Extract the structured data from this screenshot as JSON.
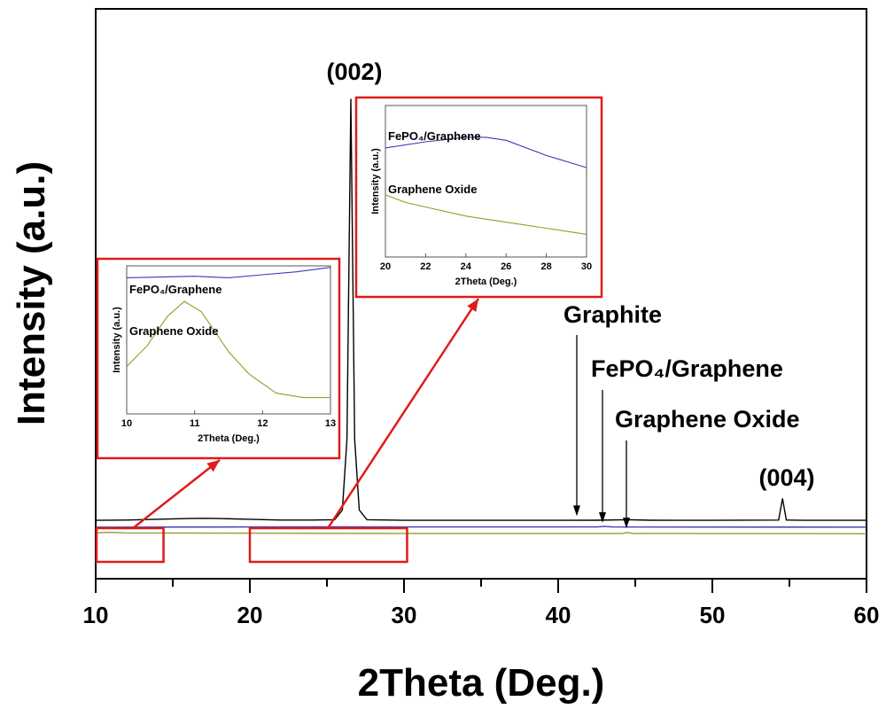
{
  "chart_data": {
    "type": "line",
    "xlabel": "2Theta (Deg.)",
    "ylabel": "Intensity (a.u.)",
    "xlim": [
      10,
      60
    ],
    "x_ticks": [
      "10",
      "20",
      "30",
      "40",
      "50",
      "60"
    ],
    "colors": {
      "graphite": "#000000",
      "fepo4": "#3a3ab8",
      "go": "#9a9a2a",
      "highlight": "#e01b1b"
    },
    "series": [
      {
        "key": "graphite",
        "points": [
          [
            10,
            0.2
          ],
          [
            12,
            0.22
          ],
          [
            14,
            0.28
          ],
          [
            16,
            0.34
          ],
          [
            17,
            0.36
          ],
          [
            18,
            0.34
          ],
          [
            20,
            0.28
          ],
          [
            22,
            0.22
          ],
          [
            24,
            0.22
          ],
          [
            25.5,
            0.25
          ],
          [
            26.0,
            1.0
          ],
          [
            26.3,
            6.5
          ],
          [
            26.55,
            33
          ],
          [
            26.8,
            6.5
          ],
          [
            27.1,
            1.0
          ],
          [
            27.6,
            0.25
          ],
          [
            30,
            0.2
          ],
          [
            35,
            0.2
          ],
          [
            40,
            0.2
          ],
          [
            42.5,
            0.21
          ],
          [
            44.5,
            0.25
          ],
          [
            46,
            0.21
          ],
          [
            50,
            0.2
          ],
          [
            54.3,
            0.22
          ],
          [
            54.55,
            1.9
          ],
          [
            54.8,
            0.22
          ],
          [
            56,
            0.2
          ],
          [
            60,
            0.2
          ]
        ]
      },
      {
        "key": "fepo4",
        "points": [
          [
            10,
            -0.33
          ],
          [
            20,
            -0.32
          ],
          [
            26,
            -0.31
          ],
          [
            30,
            -0.32
          ],
          [
            42.5,
            -0.32
          ],
          [
            43.0,
            -0.27
          ],
          [
            43.5,
            -0.32
          ],
          [
            60,
            -0.33
          ]
        ]
      },
      {
        "key": "go",
        "points": [
          [
            10,
            -0.78
          ],
          [
            10.8,
            -0.74
          ],
          [
            12,
            -0.78
          ],
          [
            20,
            -0.8
          ],
          [
            30,
            -0.82
          ],
          [
            44.2,
            -0.82
          ],
          [
            44.5,
            -0.74
          ],
          [
            44.8,
            -0.82
          ],
          [
            60,
            -0.84
          ]
        ]
      }
    ],
    "annotations": [
      {
        "text": "Graphite",
        "target": [
          41.2,
          0.25
        ]
      },
      {
        "text": "FePO₄/Graphene",
        "target": [
          42.9,
          -0.28
        ]
      },
      {
        "text": "Graphene Oxide",
        "target": [
          44.4,
          -0.7
        ]
      }
    ],
    "peak_labels": [
      "(002)",
      "(004)"
    ],
    "insets": [
      {
        "xlim": [
          10,
          13
        ],
        "x_ticks": [
          "10",
          "11",
          "12",
          "13"
        ],
        "xlabel": "2Theta (Deg.)",
        "ylabel": "Intensity (a.u.)",
        "labels": [
          "FePO₄/Graphene",
          "Graphene Oxide"
        ],
        "highlight_range": [
          10,
          14.4
        ],
        "series": [
          {
            "key": "fepo4",
            "points": [
              [
                10,
                0.92
              ],
              [
                11,
                0.93
              ],
              [
                11.5,
                0.92
              ],
              [
                12,
                0.94
              ],
              [
                12.5,
                0.96
              ],
              [
                13,
                0.99
              ]
            ]
          },
          {
            "key": "go",
            "points": [
              [
                10,
                0.32
              ],
              [
                10.3,
                0.46
              ],
              [
                10.6,
                0.66
              ],
              [
                10.85,
                0.76
              ],
              [
                11.1,
                0.69
              ],
              [
                11.5,
                0.42
              ],
              [
                11.8,
                0.27
              ],
              [
                12.2,
                0.14
              ],
              [
                12.6,
                0.11
              ],
              [
                13,
                0.11
              ]
            ]
          }
        ]
      },
      {
        "xlim": [
          20,
          30
        ],
        "x_ticks": [
          "20",
          "22",
          "24",
          "26",
          "28",
          "30"
        ],
        "xlabel": "2Theta (Deg.)",
        "ylabel": "Intensity (a.u.)",
        "labels": [
          "FePO₄/Graphene",
          "Graphene Oxide"
        ],
        "highlight_range": [
          20,
          30.2
        ],
        "series": [
          {
            "key": "fepo4",
            "points": [
              [
                20,
                0.72
              ],
              [
                22,
                0.76
              ],
              [
                24,
                0.79
              ],
              [
                25,
                0.79
              ],
              [
                26,
                0.77
              ],
              [
                28,
                0.67
              ],
              [
                30,
                0.59
              ]
            ]
          },
          {
            "key": "go",
            "points": [
              [
                20,
                0.41
              ],
              [
                21,
                0.36
              ],
              [
                22,
                0.33
              ],
              [
                24,
                0.27
              ],
              [
                26,
                0.23
              ],
              [
                28,
                0.19
              ],
              [
                30,
                0.15
              ]
            ]
          }
        ]
      }
    ]
  }
}
